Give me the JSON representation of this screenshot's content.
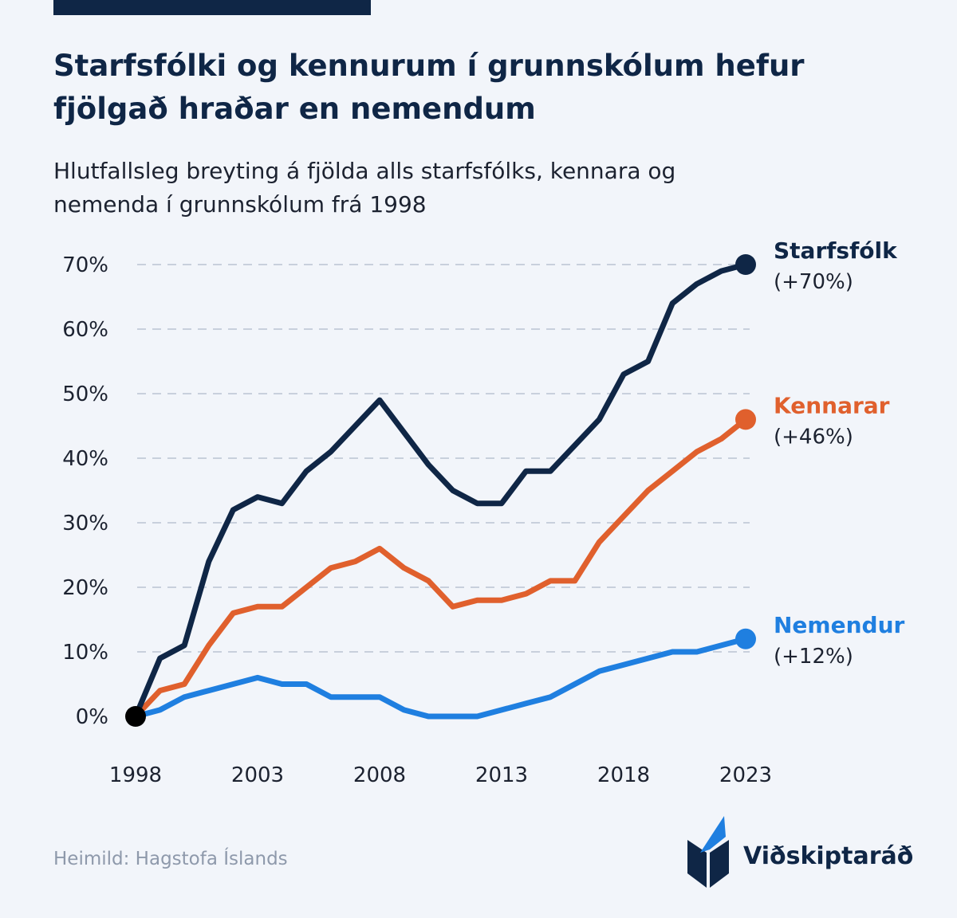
{
  "header": {
    "title": "Starfsfólki og kennurum í grunnskólum hefur fjölgað hraðar en nemendum",
    "subtitle": "Hlutfallsleg breyting á fjölda alls starfsfólks, kennara og nemenda í grunnskólum frá 1998"
  },
  "footer": {
    "source": "Heimild: Hagstofa Íslands",
    "brand": "Viðskiptaráð"
  },
  "colors": {
    "background": "#f2f5fa",
    "navy": "#0f2646",
    "orange": "#e0602d",
    "blue": "#1f7fe0",
    "grid": "#c8d0dc",
    "origin_dot": "#000000"
  },
  "chart_data": {
    "type": "line",
    "title": "Starfsfólki og kennurum í grunnskólum hefur fjölgað hraðar en nemendum",
    "subtitle": "Hlutfallsleg breyting á fjölda alls starfsfólks, kennara og nemenda í grunnskólum frá 1998",
    "xlabel": "",
    "ylabel": "",
    "x": [
      1998,
      1999,
      2000,
      2001,
      2002,
      2003,
      2004,
      2005,
      2006,
      2007,
      2008,
      2009,
      2010,
      2011,
      2012,
      2013,
      2014,
      2015,
      2016,
      2017,
      2018,
      2019,
      2020,
      2021,
      2022,
      2023
    ],
    "xticks": [
      1998,
      2003,
      2008,
      2013,
      2018,
      2023
    ],
    "xtick_labels": [
      "1998",
      "2003",
      "2008",
      "2013",
      "2018",
      "2023"
    ],
    "xlim": [
      1998,
      2023
    ],
    "yticks": [
      0,
      10,
      20,
      30,
      40,
      50,
      60,
      70
    ],
    "ytick_labels": [
      "0%",
      "10%",
      "20%",
      "30%",
      "40%",
      "50%",
      "60%",
      "70%"
    ],
    "ylim": [
      0,
      70
    ],
    "grid": "horizontal dashed",
    "legend": "direct labels at line ends",
    "series": [
      {
        "name": "Starfsfólk",
        "end_label": "(+70%)",
        "color": "#0f2646",
        "values": [
          0,
          9,
          11,
          24,
          32,
          34,
          33,
          38,
          41,
          45,
          49,
          44,
          39,
          35,
          33,
          33,
          38,
          38,
          42,
          46,
          53,
          55,
          64,
          67,
          69,
          70
        ]
      },
      {
        "name": "Kennarar",
        "end_label": "(+46%)",
        "color": "#e0602d",
        "values": [
          0,
          4,
          5,
          11,
          16,
          17,
          17,
          20,
          23,
          24,
          26,
          23,
          21,
          17,
          18,
          18,
          19,
          21,
          21,
          27,
          31,
          35,
          38,
          41,
          43,
          46
        ]
      },
      {
        "name": "Nemendur",
        "end_label": "(+12%)",
        "color": "#1f7fe0",
        "values": [
          0,
          1,
          3,
          4,
          5,
          6,
          5,
          5,
          3,
          3,
          3,
          1,
          0,
          0,
          0,
          1,
          2,
          3,
          5,
          7,
          8,
          9,
          10,
          10,
          11,
          12
        ]
      }
    ]
  }
}
